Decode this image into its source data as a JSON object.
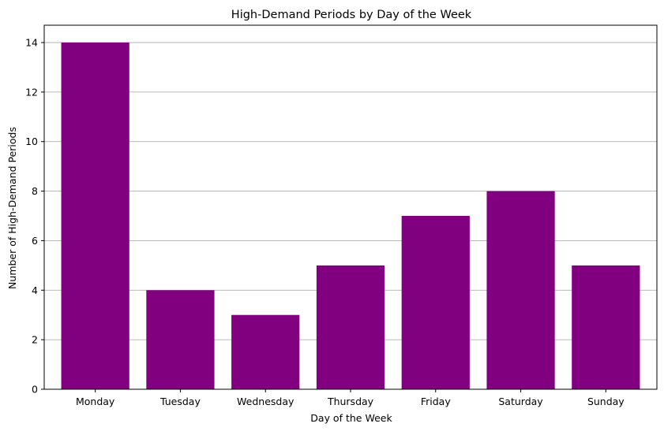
{
  "chart_data": {
    "type": "bar",
    "title": "High-Demand Periods by Day of the Week",
    "xlabel": "Day of the Week",
    "ylabel": "Number of High-Demand Periods",
    "categories": [
      "Monday",
      "Tuesday",
      "Wednesday",
      "Thursday",
      "Friday",
      "Saturday",
      "Sunday"
    ],
    "values": [
      14,
      4,
      3,
      5,
      7,
      8,
      5
    ],
    "ylim": [
      0,
      14.7
    ],
    "yticks": [
      0,
      2,
      4,
      6,
      8,
      10,
      12,
      14
    ],
    "grid": "horizontal",
    "bar_color": "#800080",
    "grid_color": "#b0b0b0"
  }
}
